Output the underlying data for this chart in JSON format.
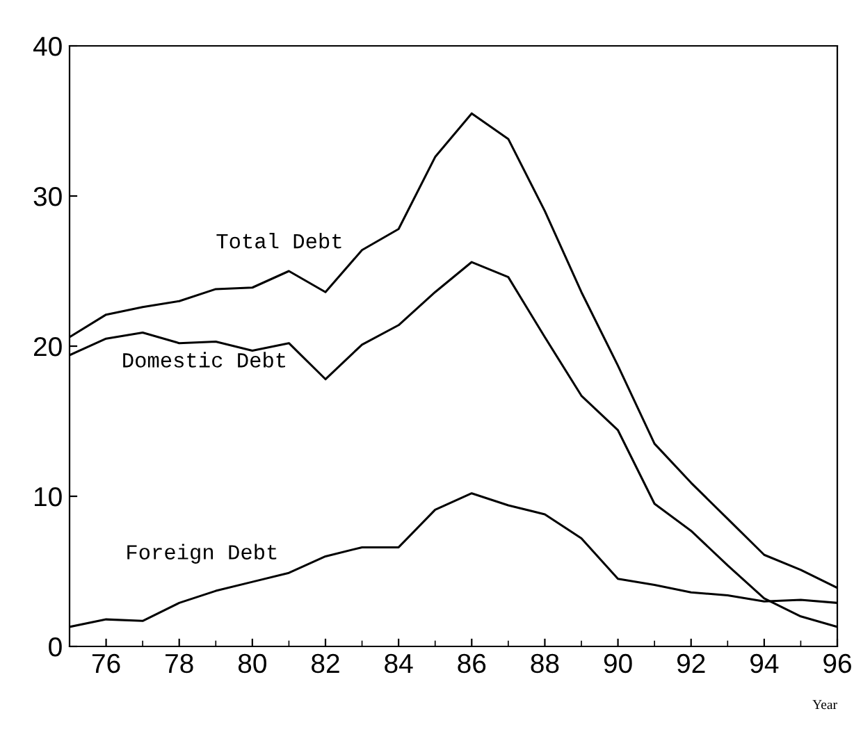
{
  "chart_data": {
    "type": "line",
    "xlabel": "Year",
    "x": [
      75,
      76,
      77,
      78,
      79,
      80,
      81,
      82,
      83,
      84,
      85,
      86,
      87,
      88,
      89,
      90,
      91,
      92,
      93,
      94,
      95,
      96
    ],
    "series": [
      {
        "name": "Total Debt",
        "color": "#000000",
        "values": [
          20.6,
          22.1,
          22.6,
          23.0,
          23.8,
          23.9,
          25.0,
          23.6,
          26.4,
          27.8,
          32.6,
          35.5,
          33.8,
          29.0,
          23.6,
          18.7,
          13.5,
          10.9,
          8.5,
          6.1,
          5.1,
          3.9
        ]
      },
      {
        "name": "Domestic Debt",
        "color": "#000000",
        "values": [
          19.4,
          20.5,
          20.9,
          20.2,
          20.3,
          19.7,
          20.2,
          17.8,
          20.1,
          21.4,
          23.6,
          25.6,
          24.6,
          20.6,
          16.7,
          14.4,
          9.5,
          7.7,
          5.4,
          3.2,
          2.0,
          1.3
        ]
      },
      {
        "name": "Foreign Debt",
        "color": "#000000",
        "values": [
          1.3,
          1.8,
          1.7,
          2.9,
          3.7,
          4.3,
          4.9,
          6.0,
          6.6,
          6.6,
          9.1,
          10.2,
          9.4,
          8.8,
          7.2,
          4.5,
          4.1,
          3.6,
          3.4,
          3.0,
          3.1,
          2.9
        ]
      }
    ],
    "xlim": [
      75,
      96
    ],
    "ylim": [
      0,
      40
    ],
    "xticks": [
      76,
      78,
      80,
      82,
      84,
      86,
      88,
      90,
      92,
      94,
      96
    ],
    "yticks": [
      0,
      10,
      20,
      30,
      40
    ],
    "grid": false,
    "legend": false,
    "marker": "none",
    "line_style": "solid"
  }
}
